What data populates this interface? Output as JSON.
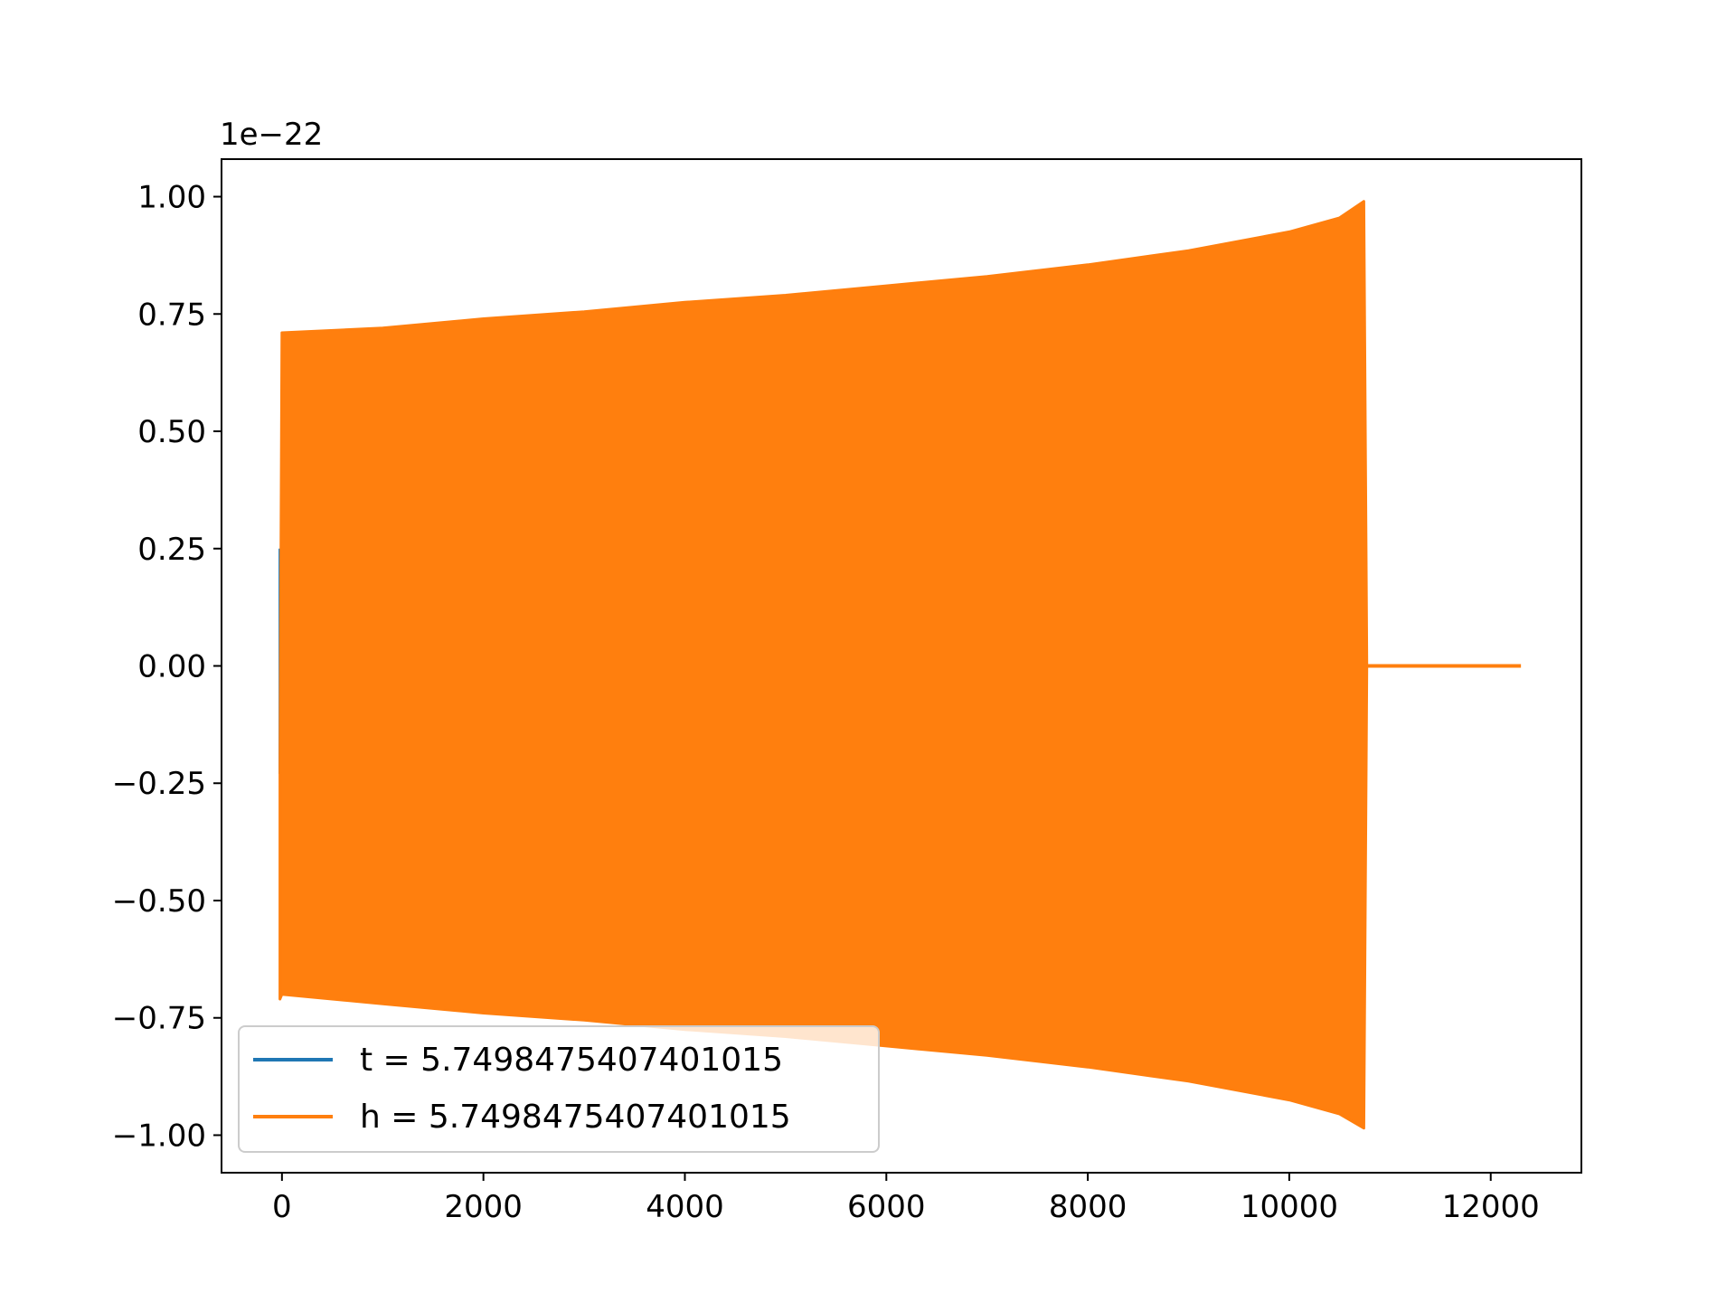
{
  "chart_data": {
    "type": "line",
    "title": "",
    "xlabel": "",
    "ylabel": "",
    "offset_text": "1e−22",
    "xlim": [
      -600,
      12900
    ],
    "ylim": [
      -1.08,
      1.08
    ],
    "xticks": [
      0,
      2000,
      4000,
      6000,
      8000,
      10000,
      12000
    ],
    "xtick_labels": [
      "0",
      "2000",
      "4000",
      "6000",
      "8000",
      "10000",
      "12000"
    ],
    "yticks": [
      1.0,
      0.75,
      0.5,
      0.25,
      0.0,
      -0.25,
      -0.5,
      -0.75,
      -1.0
    ],
    "ytick_labels": [
      "1.00",
      "0.75",
      "0.50",
      "0.25",
      "0.00",
      "−0.25",
      "−0.50",
      "−0.75",
      "−1.00"
    ],
    "grid": false,
    "legend_position": "lower-left",
    "series": [
      {
        "name": "t = 5.7498475407401015",
        "color": "#1f77b4",
        "kind": "spike",
        "x": [
          -20,
          -20
        ],
        "y": [
          0.25,
          -0.23
        ]
      },
      {
        "name": "h = 5.7498475407401015",
        "color": "#ff7f0e",
        "kind": "oscillation-envelope",
        "x": [
          -20,
          0,
          1000,
          2000,
          3000,
          4000,
          5000,
          6000,
          7000,
          8000,
          9000,
          10000,
          10500,
          10740,
          10770
        ],
        "upper": [
          -0.23,
          0.71,
          0.72,
          0.74,
          0.755,
          0.775,
          0.79,
          0.81,
          0.83,
          0.855,
          0.885,
          0.925,
          0.955,
          0.99,
          0.0
        ],
        "lower": [
          -0.71,
          -0.7,
          -0.72,
          -0.74,
          -0.755,
          -0.775,
          -0.79,
          -0.81,
          -0.83,
          -0.855,
          -0.885,
          -0.925,
          -0.955,
          -0.985,
          0.0
        ],
        "tail": {
          "x": [
            10770,
            12300
          ],
          "y": [
            0.0,
            0.0
          ]
        }
      }
    ]
  }
}
